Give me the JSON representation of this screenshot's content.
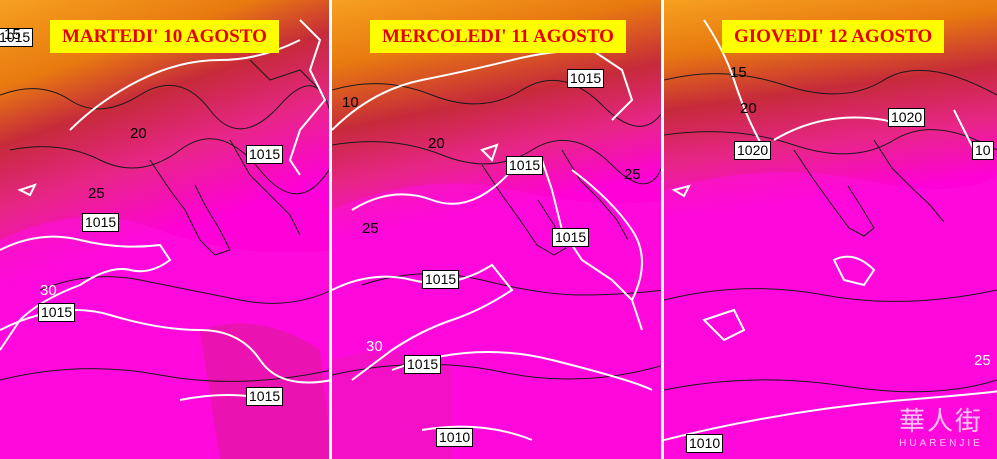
{
  "colors": {
    "heat_core": "#ff00d8",
    "heat_mid": "#e8258a",
    "heat_warm": "#c62a3a",
    "heat_edge": "#e87a10",
    "heat_outer": "#f6a020",
    "isobar": "#ffffff",
    "coast": "#1a1a1a",
    "title_bg": "#ffff00",
    "title_text": "#e60000"
  },
  "panels": [
    {
      "title": "MARTEDI' 10 AGOSTO",
      "isobars": [
        "1015",
        "1015",
        "1015",
        "1015",
        "1015"
      ],
      "temps": [
        "15",
        "20",
        "25",
        "30"
      ]
    },
    {
      "title": "MERCOLEDI' 11 AGOSTO",
      "isobars": [
        "1015",
        "1015",
        "1015",
        "1015",
        "1015",
        "1010"
      ],
      "temps": [
        "10",
        "20",
        "25",
        "30",
        "25"
      ]
    },
    {
      "title": "GIOVEDI' 12 AGOSTO",
      "isobars": [
        "1020",
        "1020",
        "10",
        "1010"
      ],
      "temps": [
        "15",
        "20",
        "25"
      ]
    }
  ],
  "watermark": {
    "glyph": "華人街",
    "text": "HUARENJIE"
  }
}
